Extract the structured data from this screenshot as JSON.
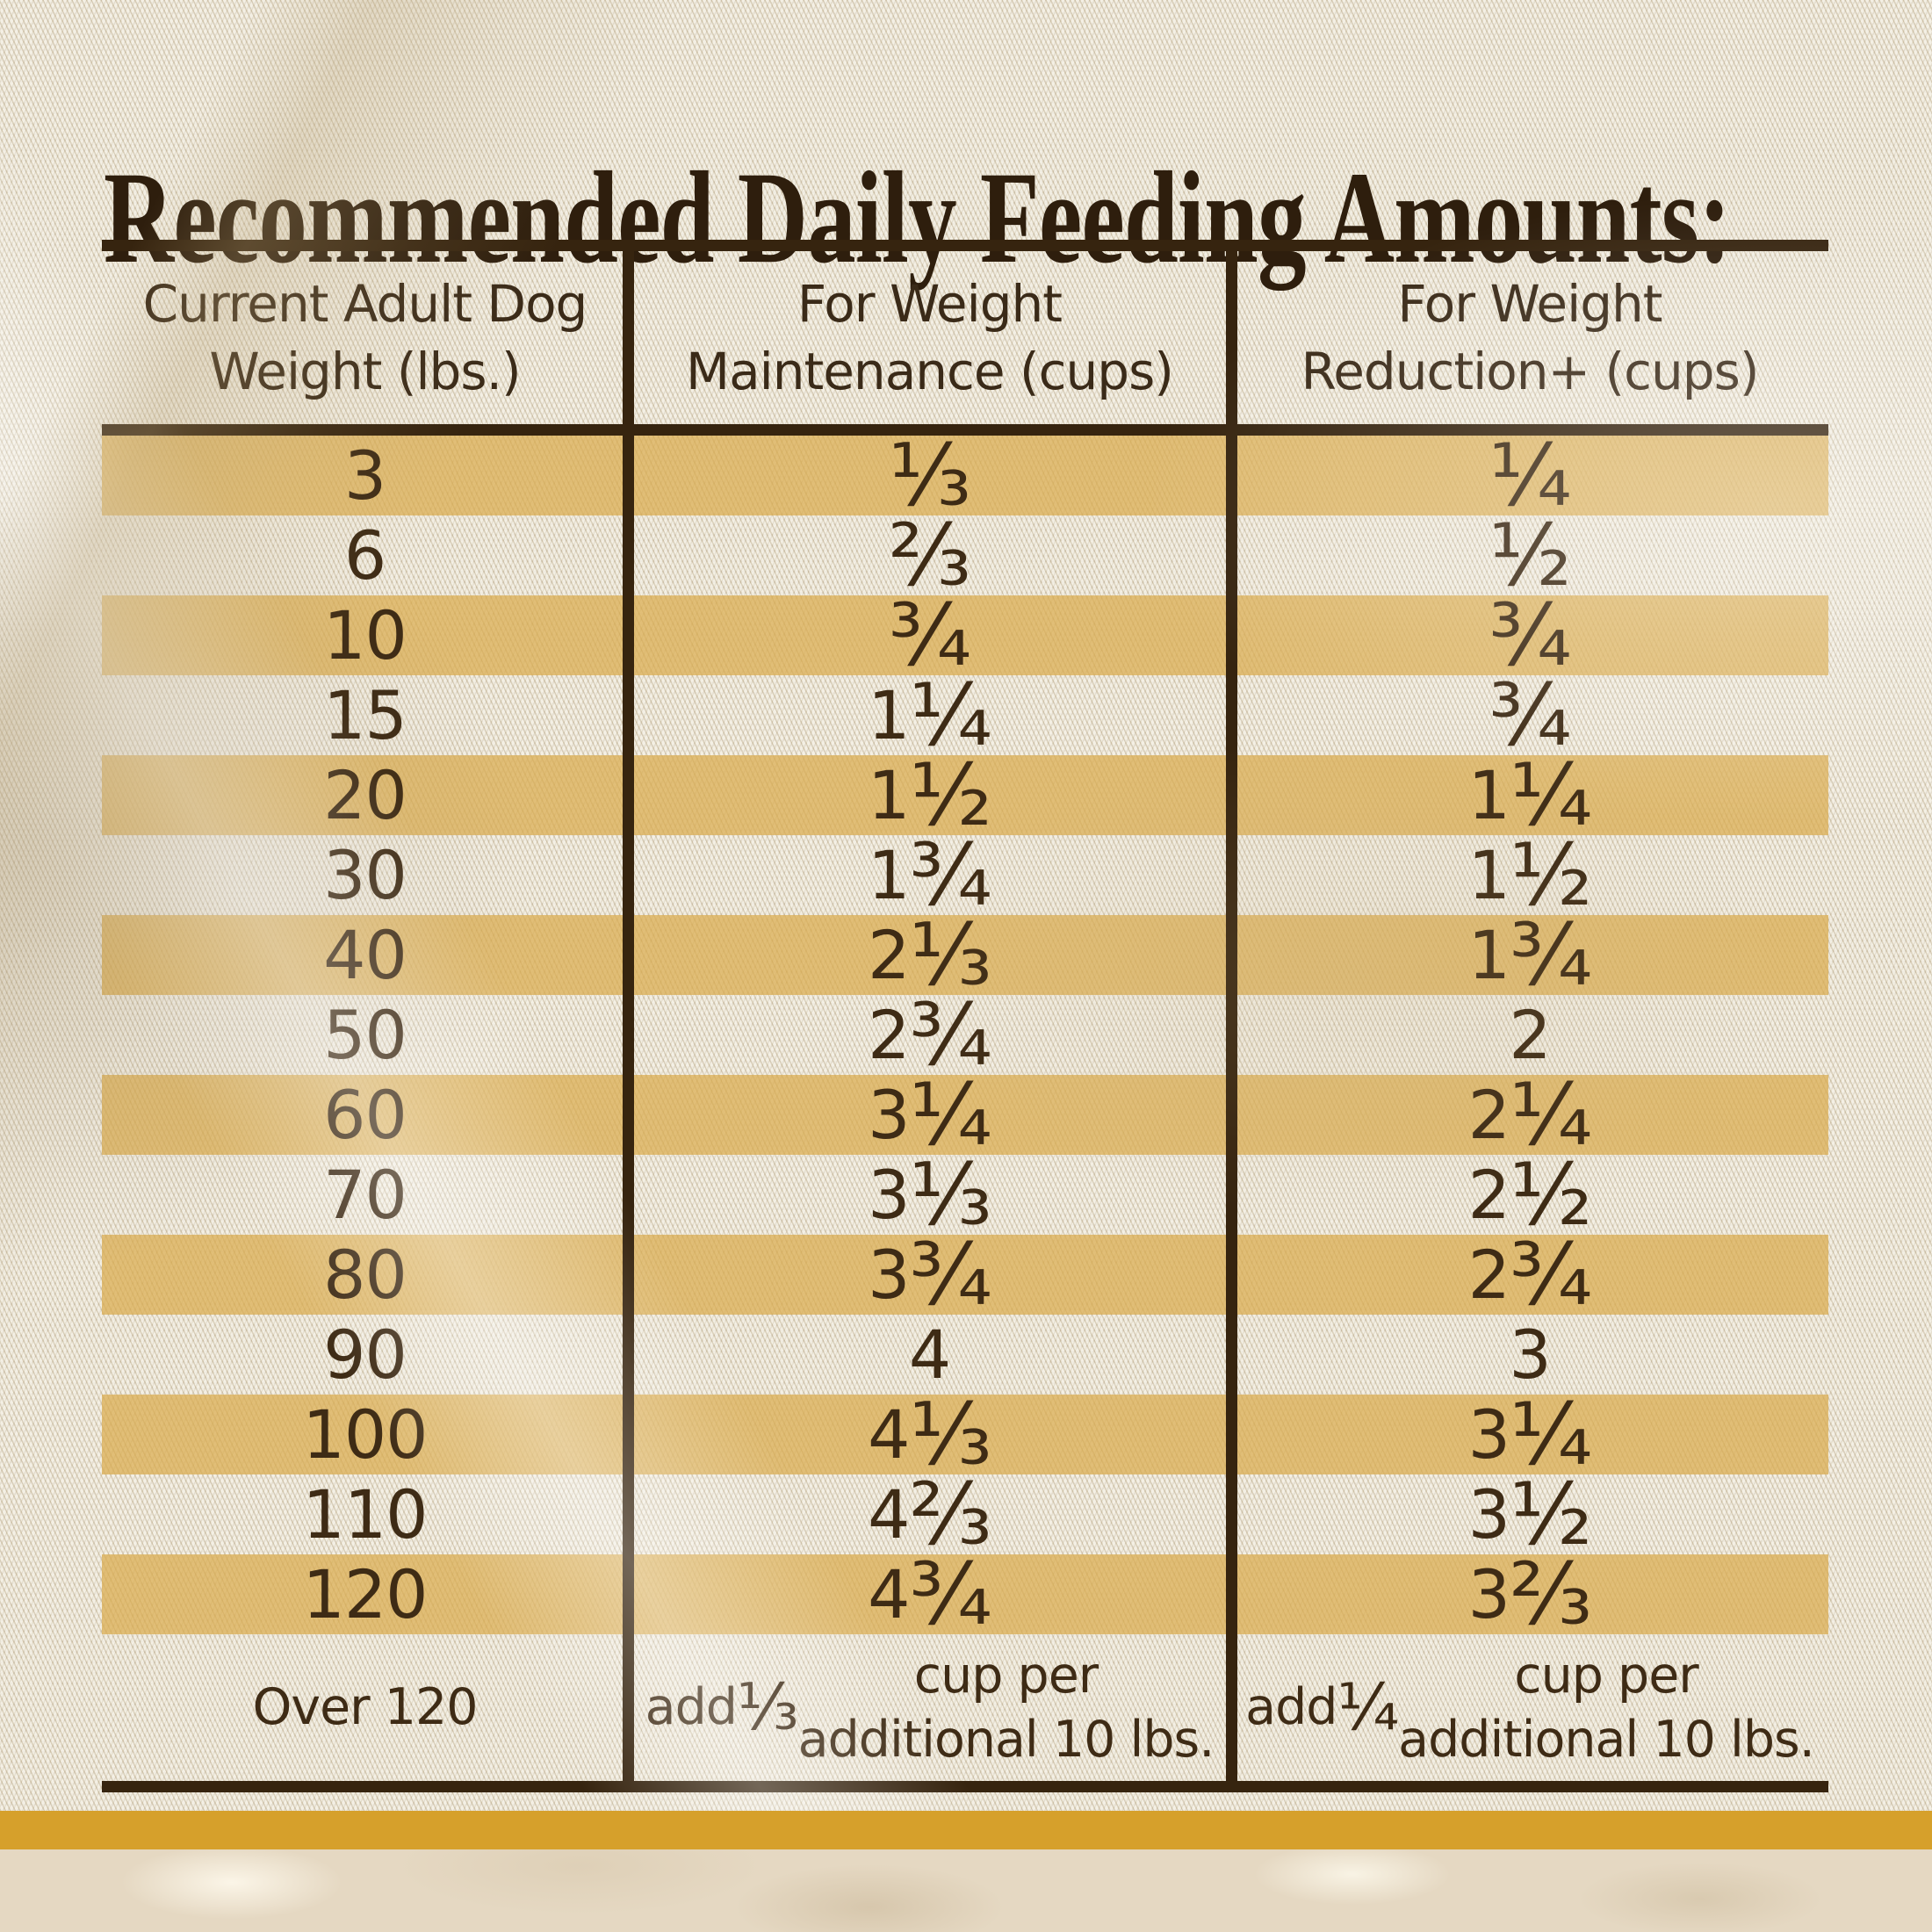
{
  "title": "Recommended Daily Feeding Amounts:",
  "table": {
    "columns": [
      "Current Adult Dog\nWeight (lbs.)",
      "For Weight\nMaintenance (cups)",
      "For Weight\nReduction+ (cups)"
    ],
    "rows": [
      {
        "weight": "3",
        "maintenance": "⅓",
        "reduction": "¼"
      },
      {
        "weight": "6",
        "maintenance": "⅔",
        "reduction": "½"
      },
      {
        "weight": "10",
        "maintenance": "¾",
        "reduction": "¾"
      },
      {
        "weight": "15",
        "maintenance": "1 ¼",
        "reduction": "¾"
      },
      {
        "weight": "20",
        "maintenance": "1 ½",
        "reduction": "1 ¼"
      },
      {
        "weight": "30",
        "maintenance": "1 ¾",
        "reduction": "1 ½"
      },
      {
        "weight": "40",
        "maintenance": "2 ⅓",
        "reduction": "1 ¾"
      },
      {
        "weight": "50",
        "maintenance": "2 ¾",
        "reduction": "2"
      },
      {
        "weight": "60",
        "maintenance": "3 ¼",
        "reduction": "2 ¼"
      },
      {
        "weight": "70",
        "maintenance": "3 ⅓",
        "reduction": "2 ½"
      },
      {
        "weight": "80",
        "maintenance": "3 ¾",
        "reduction": "2 ¾"
      },
      {
        "weight": "90",
        "maintenance": "4",
        "reduction": "3"
      },
      {
        "weight": "100",
        "maintenance": "4 ⅓",
        "reduction": "3 ¼"
      },
      {
        "weight": "110",
        "maintenance": "4 ⅔",
        "reduction": "3 ½"
      },
      {
        "weight": "120",
        "maintenance": "4 ¾",
        "reduction": "3 ⅔"
      },
      {
        "weight": "Over 120",
        "maintenance": "add ⅓ cup per\nadditional 10 lbs.",
        "reduction": "add ¼ cup per\nadditional 10 lbs."
      }
    ]
  },
  "colors": {
    "accent_gold_bar": "#D6A02B",
    "row_stripe_gold": "#DFB868",
    "text_brown": "#3E2B15",
    "rule_brown": "#36240F",
    "burlap_beige": "#EBE4D2",
    "marble_beige": "#E5D8C2"
  }
}
